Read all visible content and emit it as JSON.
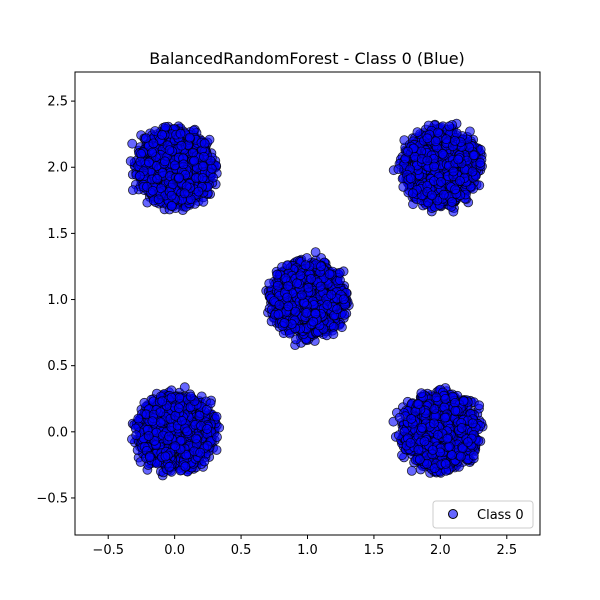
{
  "chart_data": {
    "type": "scatter",
    "title": "BalancedRandomForest - Class 0 (Blue)",
    "xlabel": "",
    "ylabel": "",
    "xlim": [
      -0.75,
      2.75
    ],
    "ylim": [
      -0.78,
      2.72
    ],
    "xticks": [
      -0.5,
      0.0,
      0.5,
      1.0,
      1.5,
      2.0,
      2.5
    ],
    "yticks": [
      -0.5,
      0.0,
      0.5,
      1.0,
      1.5,
      2.0,
      2.5
    ],
    "xtick_labels": [
      "−0.5",
      "0.0",
      "0.5",
      "1.0",
      "1.5",
      "2.0",
      "2.5"
    ],
    "ytick_labels": [
      "−0.5",
      "0.0",
      "0.5",
      "1.0",
      "1.5",
      "2.0",
      "2.5"
    ],
    "grid": false,
    "legend_position": "lower-right",
    "series": [
      {
        "name": "Class 0",
        "color": "#0000ff",
        "edge_color": "#000000",
        "alpha": 0.6,
        "marker": "circle",
        "clusters": [
          {
            "center_x": 0.0,
            "center_y": 2.0,
            "spread": 0.6,
            "points": 900
          },
          {
            "center_x": 2.0,
            "center_y": 2.0,
            "spread": 0.6,
            "points": 900
          },
          {
            "center_x": 1.0,
            "center_y": 1.0,
            "spread": 0.6,
            "points": 900
          },
          {
            "center_x": 0.0,
            "center_y": 0.0,
            "spread": 0.6,
            "points": 900
          },
          {
            "center_x": 2.0,
            "center_y": 0.0,
            "spread": 0.6,
            "points": 900
          }
        ]
      }
    ]
  }
}
